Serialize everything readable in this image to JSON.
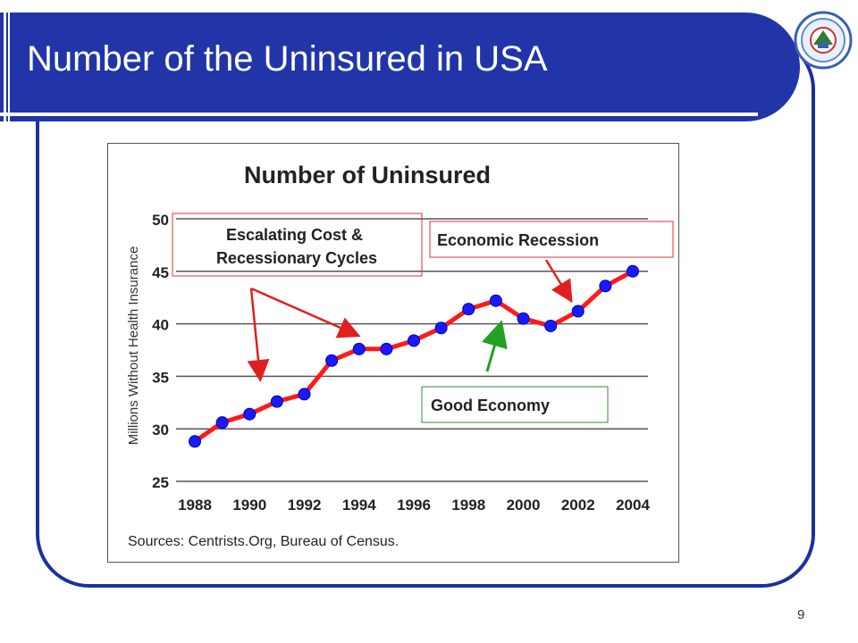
{
  "slide": {
    "title": "Number of the Uninsured in USA",
    "page_number": "9"
  },
  "chart_data": {
    "type": "line",
    "title": "Number of Uninsured",
    "ylabel": "Millions Without Health Insurance",
    "xlabel": "",
    "ylim": [
      25,
      50
    ],
    "yticks": [
      "25",
      "30",
      "35",
      "40",
      "45",
      "50"
    ],
    "xticks": [
      "1988",
      "1990",
      "1992",
      "1994",
      "1996",
      "1998",
      "2000",
      "2002",
      "2004"
    ],
    "x": [
      1988,
      1989,
      1990,
      1991,
      1992,
      1993,
      1994,
      1995,
      1996,
      1997,
      1998,
      1999,
      2000,
      2001,
      2002,
      2003,
      2004
    ],
    "values": [
      28.8,
      30.6,
      31.4,
      32.6,
      33.3,
      36.5,
      37.6,
      37.6,
      38.4,
      39.6,
      41.4,
      42.2,
      40.5,
      39.8,
      41.2,
      43.6,
      45.0
    ],
    "source": "Sources:  Centrists.Org, Bureau of Census.",
    "grid": true,
    "colors": {
      "line": "#ff1a1a",
      "marker": "#1a1aff"
    },
    "annotations": {
      "escalating": "Escalating Cost & Recessionary Cycles",
      "escalating_line1": "Escalating Cost &",
      "escalating_line2": "Recessionary Cycles",
      "recession": "Economic Recession",
      "good": "Good Economy"
    }
  }
}
